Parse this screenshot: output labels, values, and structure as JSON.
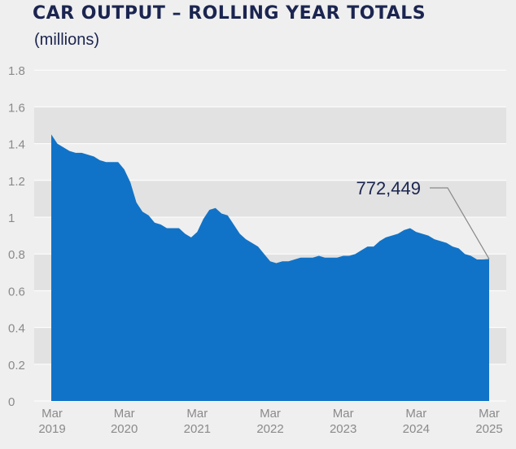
{
  "header": {
    "title": "CAR OUTPUT – ROLLING YEAR TOTALS",
    "subtitle": "(millions)"
  },
  "colors": {
    "area": "#1173c7",
    "title": "#1b2550",
    "band": "#e2e2e2",
    "background": "#efefef",
    "gridline": "#ffffff",
    "axis_text": "#8a8a8a",
    "annotation_line": "#888888"
  },
  "chart_data": {
    "type": "area",
    "title": "CAR OUTPUT – ROLLING YEAR TOTALS",
    "subtitle": "(millions)",
    "xlabel": "",
    "ylabel": "",
    "ylim": [
      0,
      1.8
    ],
    "yticks": [
      "0",
      "0.2",
      "0.4",
      "0.6",
      "0.8",
      "1",
      "1.2",
      "1.4",
      "1.6",
      "1.8"
    ],
    "xticks": [
      {
        "month": "Mar",
        "year": "2019"
      },
      {
        "month": "Mar",
        "year": "2020"
      },
      {
        "month": "Mar",
        "year": "2021"
      },
      {
        "month": "Mar",
        "year": "2022"
      },
      {
        "month": "Mar",
        "year": "2023"
      },
      {
        "month": "Mar",
        "year": "2024"
      },
      {
        "month": "Mar",
        "year": "2025"
      }
    ],
    "x": [
      "Mar 2019",
      "Apr 2019",
      "May 2019",
      "Jun 2019",
      "Jul 2019",
      "Aug 2019",
      "Sep 2019",
      "Oct 2019",
      "Nov 2019",
      "Dec 2019",
      "Jan 2020",
      "Feb 2020",
      "Mar 2020",
      "Apr 2020",
      "May 2020",
      "Jun 2020",
      "Jul 2020",
      "Aug 2020",
      "Sep 2020",
      "Oct 2020",
      "Nov 2020",
      "Dec 2020",
      "Jan 2021",
      "Feb 2021",
      "Mar 2021",
      "Apr 2021",
      "May 2021",
      "Jun 2021",
      "Jul 2021",
      "Aug 2021",
      "Sep 2021",
      "Oct 2021",
      "Nov 2021",
      "Dec 2021",
      "Jan 2022",
      "Feb 2022",
      "Mar 2022",
      "Apr 2022",
      "May 2022",
      "Jun 2022",
      "Jul 2022",
      "Aug 2022",
      "Sep 2022",
      "Oct 2022",
      "Nov 2022",
      "Dec 2022",
      "Jan 2023",
      "Feb 2023",
      "Mar 2023",
      "Apr 2023",
      "May 2023",
      "Jun 2023",
      "Jul 2023",
      "Aug 2023",
      "Sep 2023",
      "Oct 2023",
      "Nov 2023",
      "Dec 2023",
      "Jan 2024",
      "Feb 2024",
      "Mar 2024",
      "Apr 2024",
      "May 2024",
      "Jun 2024",
      "Jul 2024",
      "Aug 2024",
      "Sep 2024",
      "Oct 2024",
      "Nov 2024",
      "Dec 2024",
      "Jan 2025",
      "Feb 2025",
      "Mar 2025"
    ],
    "series": [
      {
        "values": [
          1.45,
          1.4,
          1.38,
          1.36,
          1.35,
          1.35,
          1.34,
          1.33,
          1.31,
          1.3,
          1.3,
          1.3,
          1.26,
          1.19,
          1.08,
          1.03,
          1.01,
          0.97,
          0.96,
          0.94,
          0.94,
          0.94,
          0.91,
          0.89,
          0.92,
          0.99,
          1.04,
          1.05,
          1.02,
          1.01,
          0.96,
          0.91,
          0.88,
          0.86,
          0.84,
          0.8,
          0.76,
          0.75,
          0.76,
          0.76,
          0.77,
          0.78,
          0.78,
          0.78,
          0.79,
          0.78,
          0.78,
          0.78,
          0.79,
          0.79,
          0.8,
          0.82,
          0.84,
          0.84,
          0.87,
          0.89,
          0.9,
          0.91,
          0.93,
          0.94,
          0.92,
          0.91,
          0.9,
          0.88,
          0.87,
          0.86,
          0.84,
          0.83,
          0.8,
          0.79,
          0.77,
          0.77,
          0.772449
        ]
      }
    ],
    "annotations": [
      {
        "text": "772,449",
        "x": "Mar 2025",
        "y": 0.772449
      }
    ],
    "grid": true
  }
}
